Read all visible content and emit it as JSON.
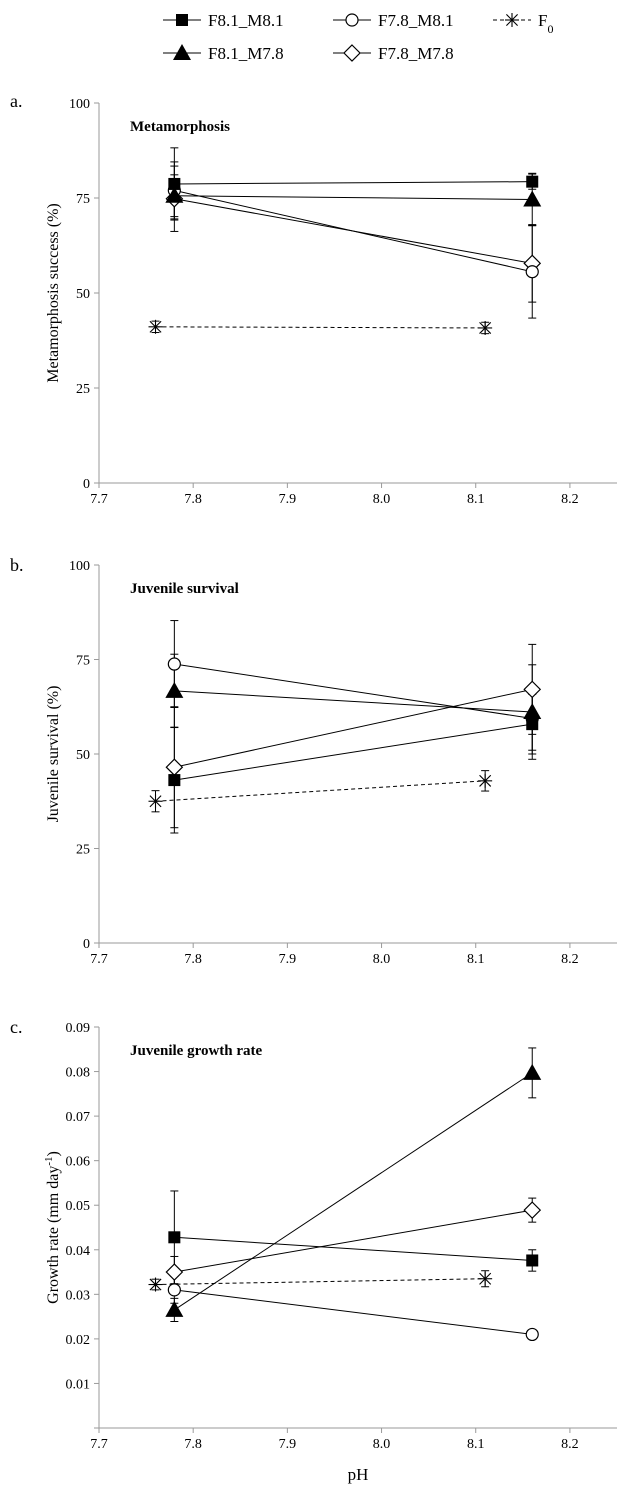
{
  "legend": [
    {
      "label": "F8.1_M8.1",
      "marker": "square-filled",
      "line": "solid"
    },
    {
      "label": "F7.8_M8.1",
      "marker": "circle-open",
      "line": "solid"
    },
    {
      "label": "F",
      "sub": "0",
      "marker": "asterisk",
      "line": "dashed"
    },
    {
      "label": "F8.1_M7.8",
      "marker": "triangle-filled",
      "line": "solid"
    },
    {
      "label": "F7.8_M7.8",
      "marker": "diamond-open",
      "line": "solid"
    }
  ],
  "xlabel": "pH",
  "chart_data": [
    {
      "type": "scatter",
      "panel": "a.",
      "title": "Metamorphosis",
      "ylabel": "Metamorphosis success (%)",
      "xlim": [
        7.7,
        8.25
      ],
      "xticks": [
        "7.7",
        "7.8",
        "7.9",
        "8.0",
        "8.1",
        "8.2"
      ],
      "ylim": [
        0,
        100
      ],
      "yticks": [
        "0",
        "25",
        "50",
        "75",
        "100"
      ],
      "series": [
        {
          "name": "F8.1_M8.1",
          "x": [
            7.78,
            8.16
          ],
          "y": [
            78.7,
            79.3
          ],
          "err": [
            9.5,
            2.0
          ]
        },
        {
          "name": "F7.8_M8.1",
          "x": [
            7.78,
            8.16
          ],
          "y": [
            77.0,
            55.6
          ],
          "err": [
            7.5,
            12.2
          ]
        },
        {
          "name": "F8.1_M7.8",
          "x": [
            7.78,
            8.16
          ],
          "y": [
            75.6,
            74.6
          ],
          "err": [
            5.5,
            6.9
          ]
        },
        {
          "name": "F7.8_M7.8",
          "x": [
            7.78,
            8.16
          ],
          "y": [
            74.8,
            57.8
          ],
          "err": [
            8.6,
            10.2
          ]
        },
        {
          "name": "F0",
          "x": [
            7.76,
            8.11
          ],
          "y": [
            41.1,
            40.8
          ],
          "err": [
            1.5,
            1.5
          ]
        }
      ]
    },
    {
      "type": "scatter",
      "panel": "b.",
      "title": "Juvenile survival",
      "ylabel": "Juvenile survival (%)",
      "xlim": [
        7.7,
        8.25
      ],
      "xticks": [
        "7.7",
        "7.8",
        "7.9",
        "8.0",
        "8.1",
        "8.2"
      ],
      "ylim": [
        0,
        100
      ],
      "yticks": [
        "0",
        "25",
        "50",
        "75",
        "100"
      ],
      "series": [
        {
          "name": "F8.1_M8.1",
          "x": [
            7.78,
            8.16
          ],
          "y": [
            43.1,
            57.9
          ],
          "err": [
            14.0,
            7.9
          ]
        },
        {
          "name": "F7.8_M8.1",
          "x": [
            7.78,
            8.16
          ],
          "y": [
            73.8,
            59.4
          ],
          "err": [
            11.5,
            8.4
          ]
        },
        {
          "name": "F8.1_M7.8",
          "x": [
            7.78,
            8.16
          ],
          "y": [
            66.7,
            61.1
          ],
          "err": [
            9.7,
            12.5
          ]
        },
        {
          "name": "F7.8_M7.8",
          "x": [
            7.78,
            8.16
          ],
          "y": [
            46.5,
            67.1
          ],
          "err": [
            16.0,
            11.9
          ]
        },
        {
          "name": "F0",
          "x": [
            7.76,
            8.11
          ],
          "y": [
            37.5,
            42.9
          ],
          "err": [
            2.8,
            2.7
          ]
        }
      ]
    },
    {
      "type": "scatter",
      "panel": "c.",
      "title": "Juvenile growth rate",
      "ylabel": "Growth rate (mm day",
      "ylabel_sup": "-1",
      "ylabel_end": ")",
      "xlim": [
        7.7,
        8.25
      ],
      "xticks": [
        "7.7",
        "7.8",
        "7.9",
        "8.0",
        "8.1",
        "8.2"
      ],
      "ylim": [
        0,
        0.09
      ],
      "yticks": [
        "",
        "0.01",
        "0.02",
        "0.03",
        "0.04",
        "0.05",
        "0.06",
        "0.07",
        "0.08",
        "0.09"
      ],
      "series": [
        {
          "name": "F8.1_M8.1",
          "x": [
            7.78,
            8.16
          ],
          "y": [
            0.0428,
            0.0376
          ],
          "err": [
            0.0104,
            0.0024
          ]
        },
        {
          "name": "F7.8_M8.1",
          "x": [
            7.78,
            8.16
          ],
          "y": [
            0.031,
            0.021
          ],
          "err": [
            0.003,
            0.0008
          ]
        },
        {
          "name": "F8.1_M7.8",
          "x": [
            7.78,
            8.16
          ],
          "y": [
            0.0265,
            0.0797
          ],
          "err": [
            0.0026,
            0.0056
          ]
        },
        {
          "name": "F7.8_M7.8",
          "x": [
            7.78,
            8.16
          ],
          "y": [
            0.035,
            0.0489
          ],
          "err": [
            0.0035,
            0.0027
          ]
        },
        {
          "name": "F0",
          "x": [
            7.76,
            8.11
          ],
          "y": [
            0.0322,
            0.0335
          ],
          "err": [
            0.0012,
            0.0018
          ]
        }
      ]
    }
  ]
}
